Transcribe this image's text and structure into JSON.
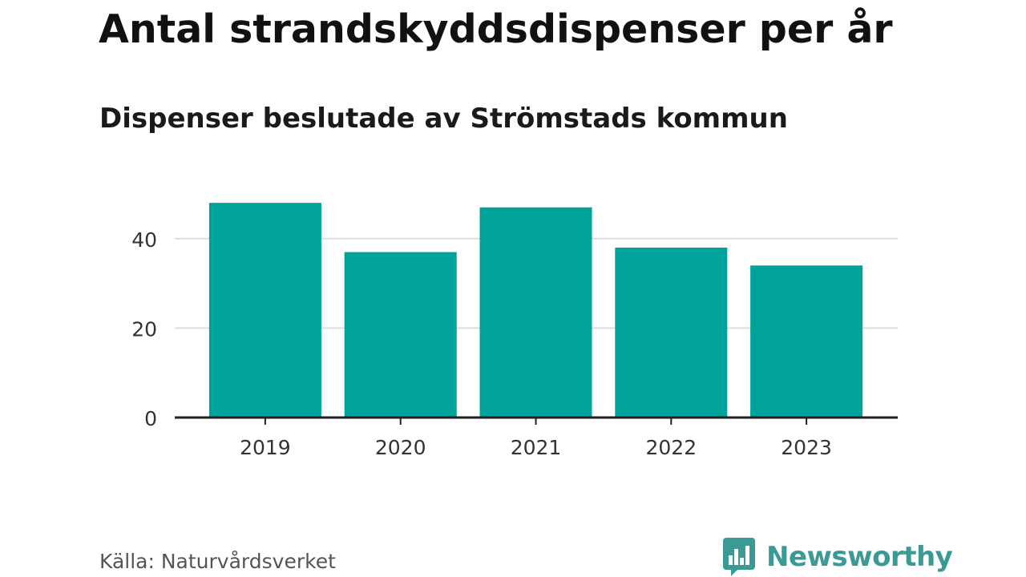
{
  "header": {
    "title": "Antal strandskyddsdispenser per år",
    "subtitle": "Dispenser beslutade av Strömstads kommun"
  },
  "footer": {
    "source": "Källa: Naturvårdsverket",
    "brand": "Newsworthy",
    "brand_icon": "bar-chart-speech-bubble-icon"
  },
  "colors": {
    "bar": "#00a39a",
    "grid": "#dddddd",
    "axis": "#222222",
    "brand": "#3c9a95"
  },
  "chart_data": {
    "type": "bar",
    "title": "Antal strandskyddsdispenser per år",
    "subtitle": "Dispenser beslutade av Strömstads kommun",
    "categories": [
      "2019",
      "2020",
      "2021",
      "2022",
      "2023"
    ],
    "values": [
      48,
      37,
      47,
      38,
      34
    ],
    "xlabel": "",
    "ylabel": "",
    "ylim": [
      0,
      50
    ],
    "yticks": [
      0,
      20,
      40
    ],
    "ytick_labels": [
      "0",
      "20",
      "40"
    ],
    "grid": true,
    "legend": "none"
  }
}
